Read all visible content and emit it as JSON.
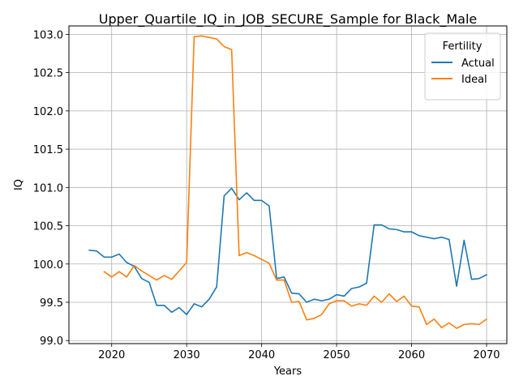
{
  "chart_data": {
    "type": "line",
    "title": "Upper_Quartile_IQ_in_JOB_SECURE_Sample for Black_Male",
    "xlabel": "Years",
    "ylabel": "IQ",
    "xlim": [
      2014.3,
      2072.7
    ],
    "ylim": [
      98.96,
      103.11
    ],
    "xticks": [
      2020,
      2030,
      2040,
      2050,
      2060,
      2070
    ],
    "yticks": [
      99.0,
      99.5,
      100.0,
      100.5,
      101.0,
      101.5,
      102.0,
      102.5,
      103.0
    ],
    "xtick_labels": [
      "2020",
      "2030",
      "2040",
      "2050",
      "2060",
      "2070"
    ],
    "ytick_labels": [
      "99.0",
      "99.5",
      "100.0",
      "100.5",
      "101.0",
      "101.5",
      "102.0",
      "102.5",
      "103.0"
    ],
    "grid": true,
    "legend": {
      "title": "Fertility",
      "placement": "top-right"
    },
    "series": [
      {
        "name": "Actual",
        "color": "#1f77b4",
        "x": [
          2017,
          2018,
          2019,
          2020,
          2021,
          2022,
          2023,
          2024,
          2025,
          2026,
          2027,
          2028,
          2029,
          2030,
          2031,
          2032,
          2033,
          2034,
          2035,
          2036,
          2037,
          2038,
          2039,
          2040,
          2041,
          2042,
          2043,
          2044,
          2045,
          2046,
          2047,
          2048,
          2049,
          2050,
          2051,
          2052,
          2053,
          2054,
          2055,
          2056,
          2057,
          2058,
          2059,
          2060,
          2061,
          2062,
          2063,
          2064,
          2065,
          2066,
          2067,
          2068,
          2069,
          2070
        ],
        "values": [
          100.18,
          100.17,
          100.09,
          100.09,
          100.13,
          100.02,
          99.97,
          99.81,
          99.76,
          99.46,
          99.46,
          99.37,
          99.43,
          99.34,
          99.48,
          99.44,
          99.54,
          99.7,
          100.89,
          100.99,
          100.84,
          100.93,
          100.83,
          100.83,
          100.76,
          99.81,
          99.83,
          99.62,
          99.61,
          99.5,
          99.54,
          99.52,
          99.54,
          99.6,
          99.58,
          99.68,
          99.7,
          99.75,
          100.51,
          100.51,
          100.46,
          100.45,
          100.42,
          100.42,
          100.37,
          100.35,
          100.33,
          100.35,
          100.32,
          99.71,
          100.31,
          99.8,
          99.81,
          99.86
        ]
      },
      {
        "name": "Ideal",
        "color": "#ff7f0e",
        "x": [
          2019,
          2020,
          2021,
          2022,
          2023,
          2024,
          2025,
          2026,
          2027,
          2028,
          2029,
          2030,
          2031,
          2032,
          2033,
          2034,
          2035,
          2036,
          2037,
          2038,
          2039,
          2040,
          2041,
          2042,
          2043,
          2044,
          2045,
          2046,
          2047,
          2048,
          2049,
          2050,
          2051,
          2052,
          2053,
          2054,
          2055,
          2056,
          2057,
          2058,
          2059,
          2060,
          2061,
          2062,
          2063,
          2064,
          2065,
          2066,
          2067,
          2068,
          2069,
          2070
        ],
        "values": [
          99.9,
          99.83,
          99.9,
          99.83,
          99.98,
          99.91,
          99.85,
          99.79,
          99.85,
          99.8,
          99.91,
          100.02,
          102.97,
          102.98,
          102.96,
          102.94,
          102.84,
          102.8,
          100.11,
          100.15,
          100.11,
          100.06,
          100.01,
          99.79,
          99.79,
          99.5,
          99.51,
          99.27,
          99.29,
          99.34,
          99.48,
          99.52,
          99.52,
          99.45,
          99.48,
          99.46,
          99.58,
          99.5,
          99.61,
          99.51,
          99.58,
          99.45,
          99.44,
          99.21,
          99.28,
          99.17,
          99.23,
          99.16,
          99.21,
          99.22,
          99.21,
          99.28
        ]
      }
    ]
  }
}
